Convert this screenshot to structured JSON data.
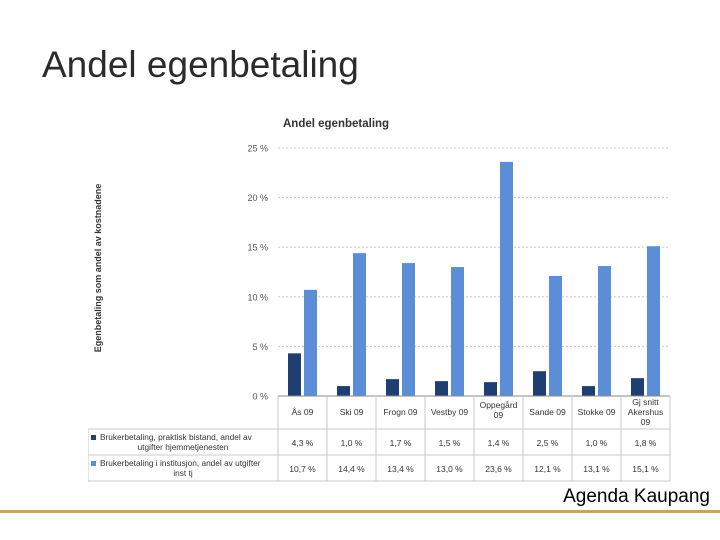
{
  "slide": {
    "title": "Andel egenbetaling",
    "footer": "Agenda Kaupang"
  },
  "colors": {
    "series1": "#1f3f73",
    "series2": "#5b8ed6",
    "grid": "#c8c8c8",
    "axis": "#888888"
  },
  "chart_data": {
    "type": "bar",
    "title": "Andel egenbetaling",
    "ylabel": "Egenbetaling som andel av kostnadene",
    "xlabel": "",
    "ylim": [
      0,
      25
    ],
    "yticks": [
      0,
      5,
      10,
      15,
      20,
      25
    ],
    "ytick_labels": [
      "0 %",
      "5 %",
      "10 %",
      "15 %",
      "20 %",
      "25 %"
    ],
    "categories": [
      [
        "Ås 09"
      ],
      [
        "Ski 09"
      ],
      [
        "Frogn 09"
      ],
      [
        "Vestby 09"
      ],
      [
        "Oppegård",
        "09"
      ],
      [
        "Sande 09"
      ],
      [
        "Stokke 09"
      ],
      [
        "Gj snitt",
        "Akershus",
        "09"
      ]
    ],
    "series": [
      {
        "name": "Brukerbetaling, praktisk bistand, andel av utgifter hjemmetjenesten",
        "name_lines": [
          "Brukerbetaling, praktisk bistand, andel av",
          "utgifter hjemmetjenesten"
        ],
        "values": [
          4.3,
          1.0,
          1.7,
          1.5,
          1.4,
          2.5,
          1.0,
          1.8
        ],
        "labels": [
          "4,3 %",
          "1,0 %",
          "1,7 %",
          "1,5 %",
          "1,4 %",
          "2,5 %",
          "1,0 %",
          "1,8 %"
        ]
      },
      {
        "name": "Brukerbetaling i institusjon, andel av utgifter inst tj",
        "name_lines": [
          "Brukerbetaling i institusjon, andel av utgifter",
          "inst tj"
        ],
        "values": [
          10.7,
          14.4,
          13.4,
          13.0,
          23.6,
          12.1,
          13.1,
          15.1
        ],
        "labels": [
          "10,7 %",
          "14,4 %",
          "13,4 %",
          "13,0 %",
          "23,6 %",
          "12,1 %",
          "13,1 %",
          "15,1 %"
        ]
      }
    ],
    "legend": "data-table-below"
  }
}
